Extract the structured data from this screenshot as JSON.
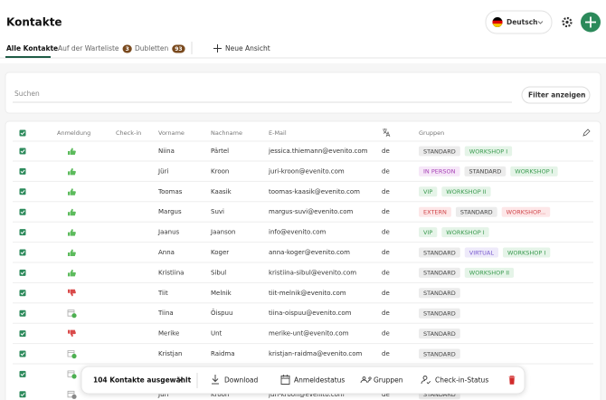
{
  "header": {
    "title": "Kontakte",
    "language": "Deutsch"
  },
  "tabs": [
    {
      "label": "Alle Kontakte"
    },
    {
      "label": "Auf der Warteliste",
      "count": 3
    },
    {
      "label": "Dubletten",
      "count": 93
    }
  ],
  "new_view": "Neue Ansicht",
  "search": {
    "placeholder": "Suchen",
    "filter_button": "Filter anzeigen"
  },
  "table": {
    "columns": [
      "Anmeldung",
      "Check-in",
      "Vorname",
      "Nachname",
      "E-Mail",
      "Gruppen"
    ],
    "rows": [
      {
        "first_name": "Niina",
        "last_name": "Pärtel",
        "email": "jessica.thiemann@evenito.com",
        "language": "de",
        "groups": [
          "STANDARD",
          "WORKSHOP I"
        ]
      },
      {
        "first_name": "Jüri",
        "last_name": "Kroon",
        "email": "juri-kroon@evenito.com",
        "language": "de",
        "groups": [
          "IN PERSON",
          "STANDARD",
          "WORKSHOP I"
        ]
      },
      {
        "first_name": "Toomas",
        "last_name": "Kaasik",
        "email": "toomas-kaasik@evenito.com",
        "language": "de",
        "groups": [
          "VIP",
          "WORKSHOP II"
        ]
      },
      {
        "first_name": "Margus",
        "last_name": "Suvi",
        "email": "margus-suvi@evenito.com",
        "language": "de",
        "groups": [
          "EXTERN",
          "STANDARD",
          "WORKSHOP..."
        ]
      },
      {
        "first_name": "Jaanus",
        "last_name": "Jaanson",
        "email": "info@evenito.com",
        "language": "de",
        "groups": [
          "VIP",
          "WORKSHOP I"
        ]
      },
      {
        "first_name": "Anna",
        "last_name": "Koger",
        "email": "anna-koger@evenito.com",
        "language": "de",
        "groups": [
          "STANDARD",
          "VIRTUAL",
          "WORKSHOP I"
        ]
      },
      {
        "first_name": "Kristiina",
        "last_name": "Sibul",
        "email": "kristiina-sibul@evenito.com",
        "language": "de",
        "groups": [
          "STANDARD",
          "WORKSHOP II"
        ]
      },
      {
        "first_name": "Tiit",
        "last_name": "Melnik",
        "email": "tiit-melnik@evenito.com",
        "language": "de",
        "groups": [
          "STANDARD"
        ]
      },
      {
        "first_name": "Tiina",
        "last_name": "Õispuu",
        "email": "tiina-oispuu@evenito.com",
        "language": "de",
        "groups": [
          "STANDARD"
        ]
      },
      {
        "first_name": "Merike",
        "last_name": "Unt",
        "email": "merike-unt@evenito.com",
        "language": "de",
        "groups": [
          "STANDARD"
        ]
      },
      {
        "first_name": "Kristjan",
        "last_name": "Raidma",
        "email": "kristjan-raidma@evenito.com",
        "language": "de",
        "groups": [
          "STANDARD"
        ]
      },
      {
        "first_name": "Jüri",
        "last_name": "Kroon",
        "email": "juri-kroon@evenito.com",
        "language": "de",
        "groups": [
          "STANDARD"
        ]
      }
    ]
  },
  "selection_bar": {
    "count_label": "104 Kontakte ausgewählt",
    "actions": [
      "Download",
      "Anmeldestatus",
      "Gruppen",
      "Check-in-Status"
    ]
  }
}
